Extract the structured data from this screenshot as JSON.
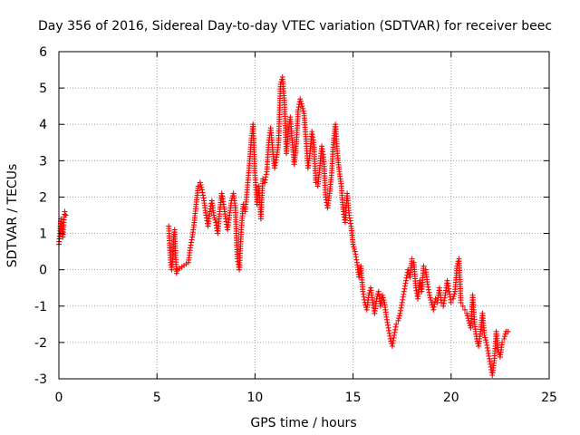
{
  "chart_data": {
    "type": "scatter",
    "title": "Day 356 of 2016, Sidereal Day-to-day VTEC variation (SDTVAR) for receiver beec",
    "xlabel": "GPS time / hours",
    "ylabel": "SDTVAR / TECUs",
    "xlim": [
      0,
      25
    ],
    "ylim": [
      -3,
      6
    ],
    "xticks": [
      "0",
      "5",
      "10",
      "15",
      "20",
      "25"
    ],
    "yticks": [
      "-3",
      "-2",
      "-1",
      "0",
      "1",
      "2",
      "3",
      "4",
      "5",
      "6"
    ],
    "xtick_values": [
      0,
      5,
      10,
      15,
      20,
      25
    ],
    "ytick_values": [
      -3,
      -2,
      -1,
      0,
      1,
      2,
      3,
      4,
      5,
      6
    ],
    "grid": true,
    "marker": "+",
    "series": [
      {
        "name": "SDTVAR",
        "color": "#ff0000",
        "x": [
          0.0,
          0.05,
          0.1,
          0.15,
          0.2,
          0.25,
          0.3,
          0.35,
          5.6,
          5.65,
          5.7,
          5.75,
          5.8,
          5.85,
          5.9,
          5.95,
          6.0,
          6.05,
          6.6,
          6.7,
          6.8,
          6.9,
          7.0,
          7.1,
          7.2,
          7.3,
          7.4,
          7.5,
          7.6,
          7.7,
          7.8,
          7.9,
          8.0,
          8.1,
          8.2,
          8.3,
          8.4,
          8.5,
          8.6,
          8.7,
          8.8,
          8.9,
          9.0,
          9.1,
          9.2,
          9.3,
          9.4,
          9.5,
          9.6,
          9.7,
          9.8,
          9.9,
          10.0,
          10.1,
          10.2,
          10.3,
          10.4,
          10.5,
          10.6,
          10.7,
          10.8,
          10.9,
          11.0,
          11.1,
          11.2,
          11.3,
          11.4,
          11.5,
          11.6,
          11.7,
          11.8,
          11.9,
          12.0,
          12.1,
          12.2,
          12.3,
          12.4,
          12.5,
          12.6,
          12.7,
          12.8,
          12.9,
          13.0,
          13.1,
          13.2,
          13.3,
          13.4,
          13.5,
          13.6,
          13.7,
          13.8,
          13.9,
          14.0,
          14.1,
          14.2,
          14.3,
          14.4,
          14.5,
          14.6,
          14.7,
          14.8,
          14.9,
          15.0,
          15.1,
          15.2,
          15.3,
          15.4,
          15.5,
          15.6,
          15.7,
          15.8,
          15.9,
          16.0,
          16.1,
          16.2,
          16.3,
          16.4,
          16.5,
          16.6,
          16.7,
          16.8,
          16.9,
          17.0,
          17.1,
          17.2,
          17.3,
          17.4,
          17.5,
          17.6,
          17.7,
          17.8,
          17.9,
          18.0,
          18.1,
          18.2,
          18.3,
          18.4,
          18.5,
          18.6,
          18.7,
          18.8,
          18.9,
          19.0,
          19.1,
          19.2,
          19.3,
          19.4,
          19.5,
          19.6,
          19.7,
          19.8,
          19.9,
          20.0,
          20.1,
          20.2,
          20.3,
          20.4,
          20.5,
          20.6,
          20.7,
          20.8,
          20.9,
          21.0,
          21.1,
          21.2,
          21.3,
          21.4,
          21.5,
          21.6,
          21.7,
          21.8,
          21.9,
          22.0,
          22.1,
          22.2,
          22.3,
          22.4,
          22.5,
          22.6,
          22.7,
          22.8,
          22.9
        ],
        "y": [
          0.7,
          1.0,
          1.4,
          1.2,
          0.9,
          1.3,
          1.6,
          1.5,
          1.2,
          0.6,
          0.2,
          0.0,
          0.3,
          0.9,
          1.1,
          0.4,
          -0.1,
          0.0,
          0.2,
          0.6,
          0.9,
          1.3,
          1.8,
          2.3,
          2.4,
          2.2,
          1.9,
          1.5,
          1.2,
          1.6,
          1.9,
          1.5,
          1.3,
          1.0,
          1.6,
          2.1,
          1.8,
          1.4,
          1.1,
          1.5,
          1.9,
          2.1,
          1.7,
          0.3,
          0.0,
          1.1,
          1.8,
          1.6,
          2.2,
          2.8,
          3.5,
          4.0,
          2.6,
          1.8,
          2.3,
          1.4,
          2.5,
          2.4,
          2.7,
          3.5,
          3.9,
          3.3,
          2.8,
          3.1,
          3.5,
          5.1,
          5.3,
          4.6,
          3.2,
          3.8,
          4.2,
          3.5,
          2.9,
          3.4,
          4.4,
          4.7,
          4.5,
          4.3,
          3.6,
          2.8,
          3.2,
          3.8,
          3.5,
          2.4,
          2.3,
          2.8,
          3.4,
          3.1,
          2.0,
          1.7,
          2.1,
          2.6,
          3.5,
          4.0,
          3.2,
          2.7,
          2.3,
          1.6,
          1.3,
          2.1,
          1.5,
          1.2,
          0.7,
          0.5,
          0.2,
          -0.2,
          0.1,
          -0.6,
          -0.9,
          -1.1,
          -0.7,
          -0.5,
          -0.9,
          -1.2,
          -0.8,
          -0.6,
          -1.0,
          -0.7,
          -0.9,
          -1.3,
          -1.6,
          -1.9,
          -2.1,
          -1.8,
          -1.5,
          -1.4,
          -1.2,
          -0.9,
          -0.6,
          -0.3,
          0.0,
          -0.2,
          0.3,
          0.2,
          -0.5,
          -0.8,
          -0.3,
          -0.6,
          0.1,
          0.0,
          -0.4,
          -0.7,
          -0.9,
          -1.1,
          -0.8,
          -0.9,
          -0.5,
          -0.9,
          -1.0,
          -0.7,
          -0.3,
          -0.6,
          -0.9,
          -0.8,
          -0.6,
          0.1,
          0.3,
          -0.9,
          -1.0,
          -1.1,
          -1.2,
          -1.4,
          -1.6,
          -0.7,
          -1.5,
          -1.9,
          -2.1,
          -1.7,
          -1.2,
          -1.8,
          -2.0,
          -2.3,
          -2.6,
          -2.9,
          -2.5,
          -1.7,
          -2.2,
          -2.4,
          -2.0,
          -1.9,
          -1.7,
          -1.7
        ]
      }
    ]
  }
}
